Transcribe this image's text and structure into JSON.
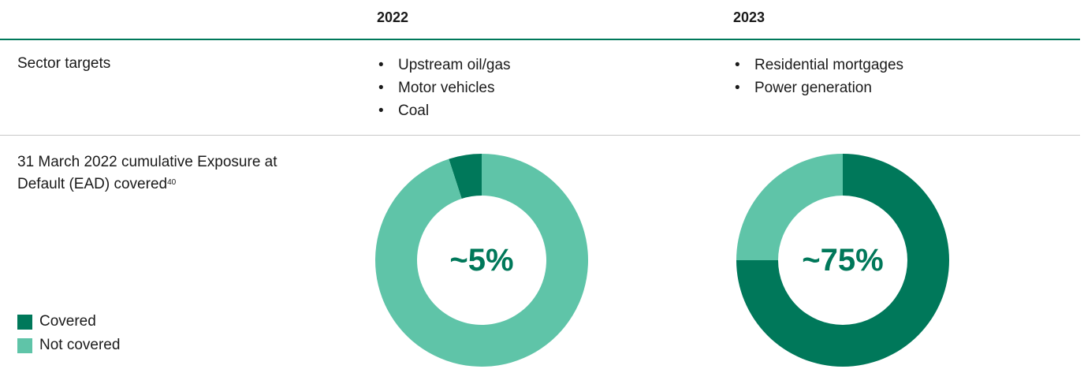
{
  "table": {
    "columns": [
      "2022",
      "2023"
    ],
    "rows": [
      {
        "label": "Sector targets",
        "cells": [
          [
            "Upstream oil/gas",
            "Motor vehicles",
            "Coal"
          ],
          [
            "Residential mortgages",
            "Power generation"
          ]
        ]
      },
      {
        "label": "31 March 2022 cumulative Exposure at Default (EAD) covered",
        "footnote": "40"
      }
    ]
  },
  "chart_data": [
    {
      "type": "pie",
      "donut": true,
      "direction": "counterclockwise",
      "categories": [
        "Covered",
        "Not covered"
      ],
      "values": [
        5,
        95
      ],
      "colors": [
        "#00785a",
        "#5fc4a8"
      ],
      "center_label": "~5%"
    },
    {
      "type": "pie",
      "donut": true,
      "direction": "clockwise",
      "categories": [
        "Covered",
        "Not covered"
      ],
      "values": [
        75,
        25
      ],
      "colors": [
        "#00785a",
        "#5fc4a8"
      ],
      "center_label": "~75%"
    }
  ]
}
